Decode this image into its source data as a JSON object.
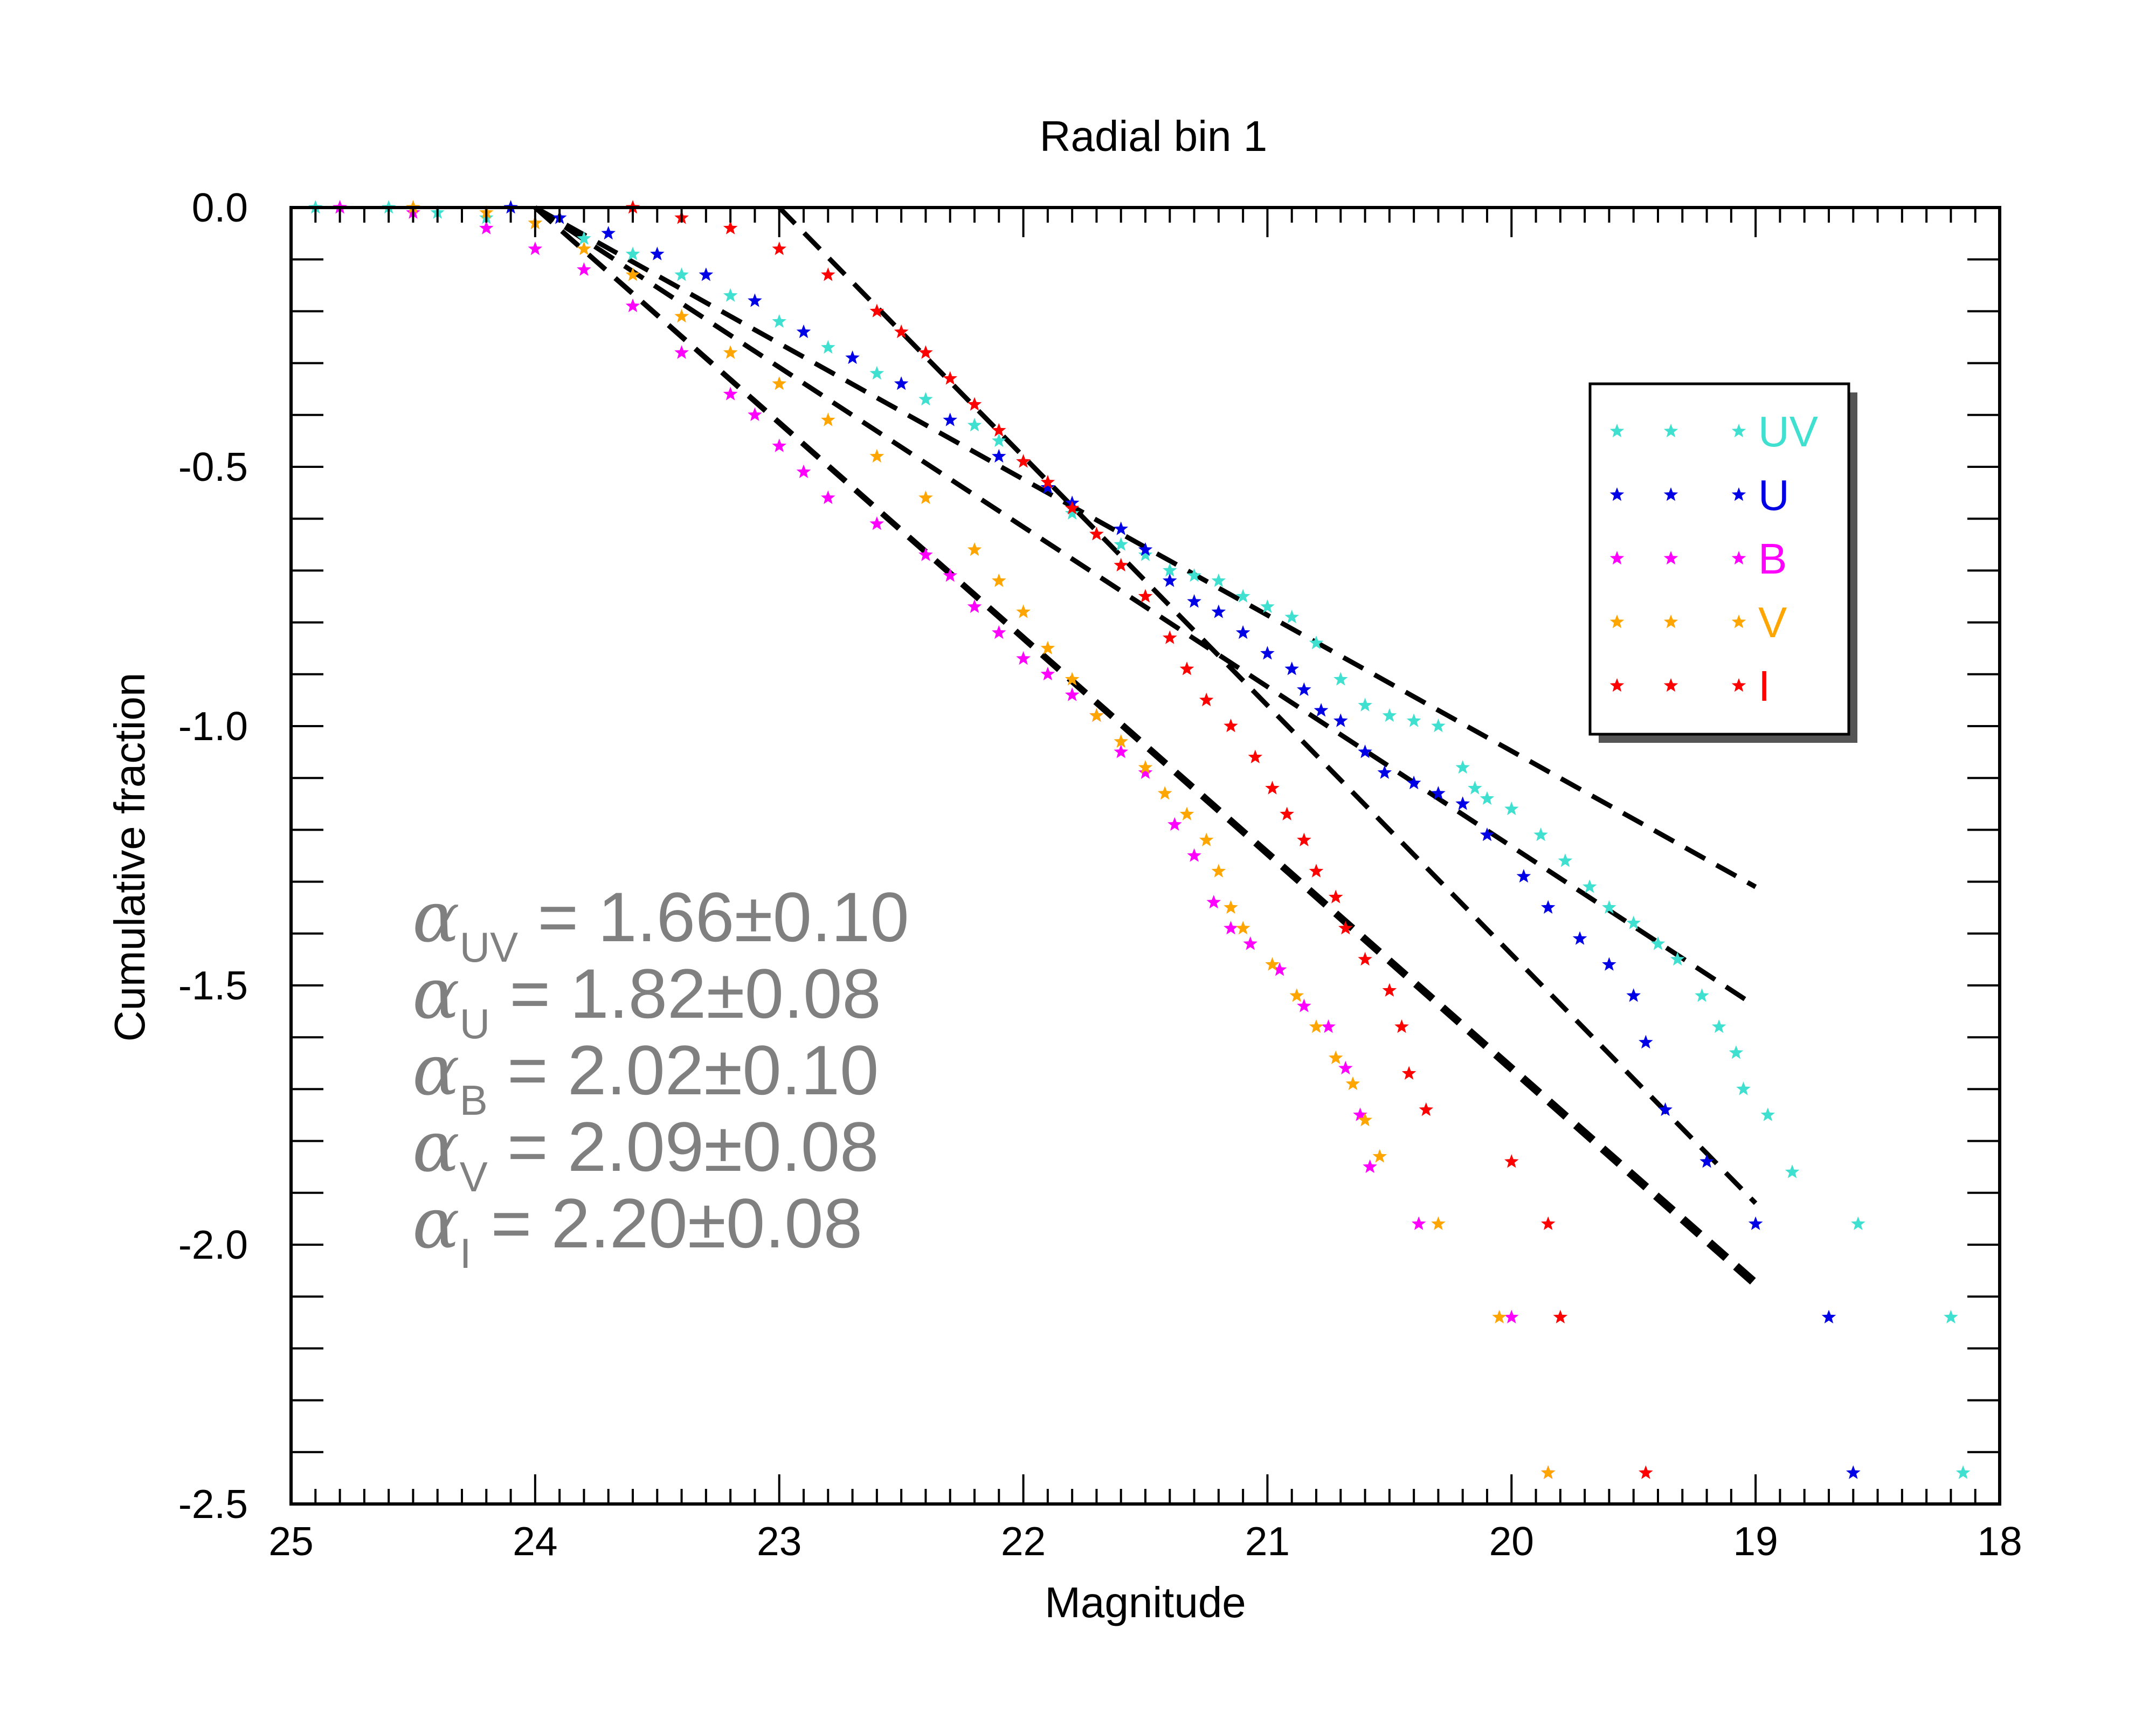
{
  "chart_data": {
    "type": "scatter",
    "title": "Radial bin 1",
    "xlabel": "Magnitude",
    "ylabel": "Cumulative fraction",
    "xlim": [
      25,
      18
    ],
    "ylim": [
      -2.5,
      0.0
    ],
    "x_ticks": [
      "25",
      "24",
      "23",
      "22",
      "21",
      "20",
      "19",
      "18"
    ],
    "y_ticks": [
      "0.0",
      "-0.5",
      "-1.0",
      "-1.5",
      "-2.0",
      "-2.5"
    ],
    "legend_position": "right",
    "series": [
      {
        "name": "UV",
        "color": "#40E0D0",
        "points": [
          [
            24.9,
            0.0
          ],
          [
            24.8,
            0.0
          ],
          [
            24.6,
            0.0
          ],
          [
            24.4,
            -0.01
          ],
          [
            24.2,
            -0.02
          ],
          [
            24.0,
            -0.03
          ],
          [
            23.8,
            -0.06
          ],
          [
            23.6,
            -0.09
          ],
          [
            23.4,
            -0.13
          ],
          [
            23.2,
            -0.17
          ],
          [
            23.0,
            -0.22
          ],
          [
            22.8,
            -0.27
          ],
          [
            22.6,
            -0.32
          ],
          [
            22.4,
            -0.37
          ],
          [
            22.2,
            -0.42
          ],
          [
            22.1,
            -0.45
          ],
          [
            22.0,
            -0.49
          ],
          [
            21.9,
            -0.54
          ],
          [
            21.8,
            -0.59
          ],
          [
            21.7,
            -0.63
          ],
          [
            21.6,
            -0.65
          ],
          [
            21.5,
            -0.67
          ],
          [
            21.4,
            -0.7
          ],
          [
            21.3,
            -0.71
          ],
          [
            21.2,
            -0.72
          ],
          [
            21.1,
            -0.75
          ],
          [
            21.0,
            -0.77
          ],
          [
            20.9,
            -0.79
          ],
          [
            20.8,
            -0.84
          ],
          [
            20.7,
            -0.91
          ],
          [
            20.6,
            -0.96
          ],
          [
            20.5,
            -0.98
          ],
          [
            20.4,
            -0.99
          ],
          [
            20.3,
            -1.0
          ],
          [
            20.2,
            -1.08
          ],
          [
            20.15,
            -1.12
          ],
          [
            20.1,
            -1.14
          ],
          [
            20.0,
            -1.16
          ],
          [
            19.88,
            -1.21
          ],
          [
            19.78,
            -1.26
          ],
          [
            19.68,
            -1.31
          ],
          [
            19.6,
            -1.35
          ],
          [
            19.5,
            -1.38
          ],
          [
            19.4,
            -1.42
          ],
          [
            19.32,
            -1.45
          ],
          [
            19.22,
            -1.52
          ],
          [
            19.15,
            -1.58
          ],
          [
            19.08,
            -1.63
          ],
          [
            19.05,
            -1.7
          ],
          [
            18.95,
            -1.75
          ],
          [
            18.85,
            -1.86
          ],
          [
            18.58,
            -1.96
          ],
          [
            18.2,
            -2.14
          ],
          [
            18.15,
            -2.44
          ]
        ]
      },
      {
        "name": "U",
        "color": "#0000E6",
        "points": [
          [
            24.1,
            0.0
          ],
          [
            23.9,
            -0.02
          ],
          [
            23.7,
            -0.05
          ],
          [
            23.5,
            -0.09
          ],
          [
            23.3,
            -0.13
          ],
          [
            23.1,
            -0.18
          ],
          [
            22.9,
            -0.24
          ],
          [
            22.7,
            -0.29
          ],
          [
            22.5,
            -0.34
          ],
          [
            22.3,
            -0.41
          ],
          [
            22.1,
            -0.48
          ],
          [
            21.9,
            -0.54
          ],
          [
            21.8,
            -0.57
          ],
          [
            21.6,
            -0.62
          ],
          [
            21.5,
            -0.66
          ],
          [
            21.4,
            -0.72
          ],
          [
            21.3,
            -0.76
          ],
          [
            21.2,
            -0.78
          ],
          [
            21.1,
            -0.82
          ],
          [
            21.0,
            -0.86
          ],
          [
            20.9,
            -0.89
          ],
          [
            20.85,
            -0.93
          ],
          [
            20.78,
            -0.97
          ],
          [
            20.7,
            -0.99
          ],
          [
            20.6,
            -1.05
          ],
          [
            20.52,
            -1.09
          ],
          [
            20.4,
            -1.11
          ],
          [
            20.3,
            -1.13
          ],
          [
            20.2,
            -1.15
          ],
          [
            20.1,
            -1.21
          ],
          [
            19.95,
            -1.29
          ],
          [
            19.85,
            -1.35
          ],
          [
            19.72,
            -1.41
          ],
          [
            19.6,
            -1.46
          ],
          [
            19.5,
            -1.52
          ],
          [
            19.45,
            -1.61
          ],
          [
            19.37,
            -1.74
          ],
          [
            19.2,
            -1.84
          ],
          [
            19.0,
            -1.96
          ],
          [
            18.7,
            -2.14
          ],
          [
            18.6,
            -2.44
          ]
        ]
      },
      {
        "name": "B",
        "color": "#FF00FF",
        "points": [
          [
            24.8,
            0.0
          ],
          [
            24.5,
            -0.01
          ],
          [
            24.2,
            -0.04
          ],
          [
            24.0,
            -0.08
          ],
          [
            23.8,
            -0.12
          ],
          [
            23.6,
            -0.19
          ],
          [
            23.4,
            -0.28
          ],
          [
            23.2,
            -0.36
          ],
          [
            23.1,
            -0.4
          ],
          [
            23.0,
            -0.46
          ],
          [
            22.9,
            -0.51
          ],
          [
            22.8,
            -0.56
          ],
          [
            22.6,
            -0.61
          ],
          [
            22.4,
            -0.67
          ],
          [
            22.3,
            -0.71
          ],
          [
            22.2,
            -0.77
          ],
          [
            22.1,
            -0.82
          ],
          [
            22.0,
            -0.87
          ],
          [
            21.9,
            -0.9
          ],
          [
            21.8,
            -0.94
          ],
          [
            21.7,
            -0.98
          ],
          [
            21.6,
            -1.05
          ],
          [
            21.5,
            -1.09
          ],
          [
            21.38,
            -1.19
          ],
          [
            21.3,
            -1.25
          ],
          [
            21.22,
            -1.34
          ],
          [
            21.15,
            -1.39
          ],
          [
            21.07,
            -1.42
          ],
          [
            20.95,
            -1.47
          ],
          [
            20.85,
            -1.54
          ],
          [
            20.75,
            -1.58
          ],
          [
            20.68,
            -1.66
          ],
          [
            20.62,
            -1.75
          ],
          [
            20.58,
            -1.85
          ],
          [
            20.38,
            -1.96
          ],
          [
            20.0,
            -2.14
          ],
          [
            19.85,
            -2.44
          ]
        ]
      },
      {
        "name": "V",
        "color": "#FFA500",
        "points": [
          [
            24.5,
            0.0
          ],
          [
            24.2,
            -0.01
          ],
          [
            24.0,
            -0.03
          ],
          [
            23.8,
            -0.08
          ],
          [
            23.6,
            -0.13
          ],
          [
            23.4,
            -0.21
          ],
          [
            23.2,
            -0.28
          ],
          [
            23.0,
            -0.34
          ],
          [
            22.8,
            -0.41
          ],
          [
            22.6,
            -0.48
          ],
          [
            22.4,
            -0.56
          ],
          [
            22.2,
            -0.66
          ],
          [
            22.1,
            -0.72
          ],
          [
            22.0,
            -0.78
          ],
          [
            21.9,
            -0.85
          ],
          [
            21.8,
            -0.91
          ],
          [
            21.7,
            -0.98
          ],
          [
            21.6,
            -1.03
          ],
          [
            21.5,
            -1.08
          ],
          [
            21.42,
            -1.13
          ],
          [
            21.33,
            -1.17
          ],
          [
            21.25,
            -1.22
          ],
          [
            21.2,
            -1.28
          ],
          [
            21.15,
            -1.35
          ],
          [
            21.1,
            -1.39
          ],
          [
            20.98,
            -1.46
          ],
          [
            20.88,
            -1.52
          ],
          [
            20.8,
            -1.58
          ],
          [
            20.72,
            -1.64
          ],
          [
            20.65,
            -1.69
          ],
          [
            20.6,
            -1.76
          ],
          [
            20.54,
            -1.83
          ],
          [
            20.3,
            -1.96
          ],
          [
            20.05,
            -2.14
          ],
          [
            19.85,
            -2.44
          ]
        ]
      },
      {
        "name": "I",
        "color": "#FF0000",
        "points": [
          [
            23.6,
            0.0
          ],
          [
            23.4,
            -0.02
          ],
          [
            23.2,
            -0.04
          ],
          [
            23.0,
            -0.08
          ],
          [
            22.8,
            -0.13
          ],
          [
            22.6,
            -0.2
          ],
          [
            22.5,
            -0.24
          ],
          [
            22.4,
            -0.28
          ],
          [
            22.3,
            -0.33
          ],
          [
            22.2,
            -0.38
          ],
          [
            22.1,
            -0.43
          ],
          [
            22.0,
            -0.49
          ],
          [
            21.9,
            -0.53
          ],
          [
            21.8,
            -0.58
          ],
          [
            21.7,
            -0.63
          ],
          [
            21.6,
            -0.69
          ],
          [
            21.5,
            -0.75
          ],
          [
            21.4,
            -0.83
          ],
          [
            21.33,
            -0.89
          ],
          [
            21.25,
            -0.95
          ],
          [
            21.15,
            -1.0
          ],
          [
            21.05,
            -1.06
          ],
          [
            20.98,
            -1.12
          ],
          [
            20.92,
            -1.17
          ],
          [
            20.85,
            -1.22
          ],
          [
            20.8,
            -1.28
          ],
          [
            20.72,
            -1.33
          ],
          [
            20.68,
            -1.39
          ],
          [
            20.6,
            -1.45
          ],
          [
            20.5,
            -1.51
          ],
          [
            20.45,
            -1.58
          ],
          [
            20.42,
            -1.67
          ],
          [
            20.35,
            -1.74
          ],
          [
            20.0,
            -1.84
          ],
          [
            19.85,
            -1.96
          ],
          [
            19.8,
            -2.14
          ],
          [
            19.45,
            -2.44
          ]
        ]
      }
    ],
    "fit_lines": [
      {
        "name": "UV fit",
        "x": [
          24.0,
          19.0
        ],
        "y": [
          0.0,
          -1.31
        ]
      },
      {
        "name": "U fit",
        "x": [
          24.0,
          19.0
        ],
        "y": [
          0.0,
          -1.54
        ]
      },
      {
        "name": "B fit",
        "x": [
          24.0,
          19.0
        ],
        "y": [
          0.0,
          -2.07
        ]
      },
      {
        "name": "V fit",
        "x": [
          24.0,
          19.0
        ],
        "y": [
          0.0,
          -2.08
        ]
      },
      {
        "name": "I fit",
        "x": [
          23.0,
          19.0
        ],
        "y": [
          0.0,
          -1.92
        ]
      }
    ],
    "annotations": [
      {
        "symbol": "α",
        "sub": "UV",
        "text": " = 1.66±0.10"
      },
      {
        "symbol": "α",
        "sub": "U",
        "text": " = 1.82±0.08"
      },
      {
        "symbol": "α",
        "sub": "B",
        "text": " = 2.02±0.10"
      },
      {
        "symbol": "α",
        "sub": "V",
        "text": " = 2.09±0.08"
      },
      {
        "symbol": "α",
        "sub": "I",
        "text": " = 2.20±0.08"
      }
    ]
  }
}
